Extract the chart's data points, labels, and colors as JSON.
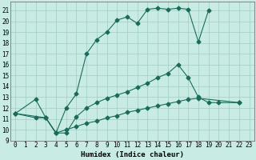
{
  "title": "",
  "xlabel": "Humidex (Indice chaleur)",
  "bg_color": "#c8ece4",
  "grid_color": "#a0ccc4",
  "line_color": "#1a6b5a",
  "xlim": [
    -0.5,
    23.5
  ],
  "ylim": [
    9,
    21.8
  ],
  "xticks": [
    0,
    1,
    2,
    3,
    4,
    5,
    6,
    7,
    8,
    9,
    10,
    11,
    12,
    13,
    14,
    15,
    16,
    17,
    18,
    19,
    20,
    21,
    22,
    23
  ],
  "yticks": [
    9,
    10,
    11,
    12,
    13,
    14,
    15,
    16,
    17,
    18,
    19,
    20,
    21
  ],
  "line1_x": [
    0,
    2,
    3,
    4,
    5,
    6,
    7,
    8,
    9,
    10,
    11,
    12,
    13,
    14,
    15,
    16,
    17,
    18,
    19
  ],
  "line1_y": [
    11.5,
    12.8,
    11.1,
    9.7,
    12.0,
    13.3,
    17.0,
    18.3,
    19.0,
    20.1,
    20.4,
    19.8,
    21.1,
    21.2,
    21.1,
    21.2,
    21.1,
    18.1,
    21.0
  ],
  "line2_x": [
    0,
    2,
    3,
    4,
    5,
    6,
    7,
    8,
    9,
    10,
    11,
    12,
    13,
    14,
    15,
    16,
    17,
    18,
    19,
    20,
    22
  ],
  "line2_y": [
    11.5,
    11.1,
    11.1,
    9.7,
    9.7,
    11.2,
    12.0,
    12.5,
    12.9,
    13.2,
    13.5,
    13.9,
    14.3,
    14.8,
    15.2,
    16.0,
    14.8,
    13.0,
    12.5,
    12.5,
    12.5
  ],
  "line3_x": [
    0,
    3,
    4,
    5,
    6,
    7,
    8,
    9,
    10,
    11,
    12,
    13,
    14,
    15,
    16,
    17,
    18,
    22
  ],
  "line3_y": [
    11.5,
    11.1,
    9.7,
    10.0,
    10.3,
    10.6,
    10.8,
    11.1,
    11.3,
    11.6,
    11.8,
    12.0,
    12.2,
    12.4,
    12.6,
    12.8,
    12.9,
    12.5
  ]
}
